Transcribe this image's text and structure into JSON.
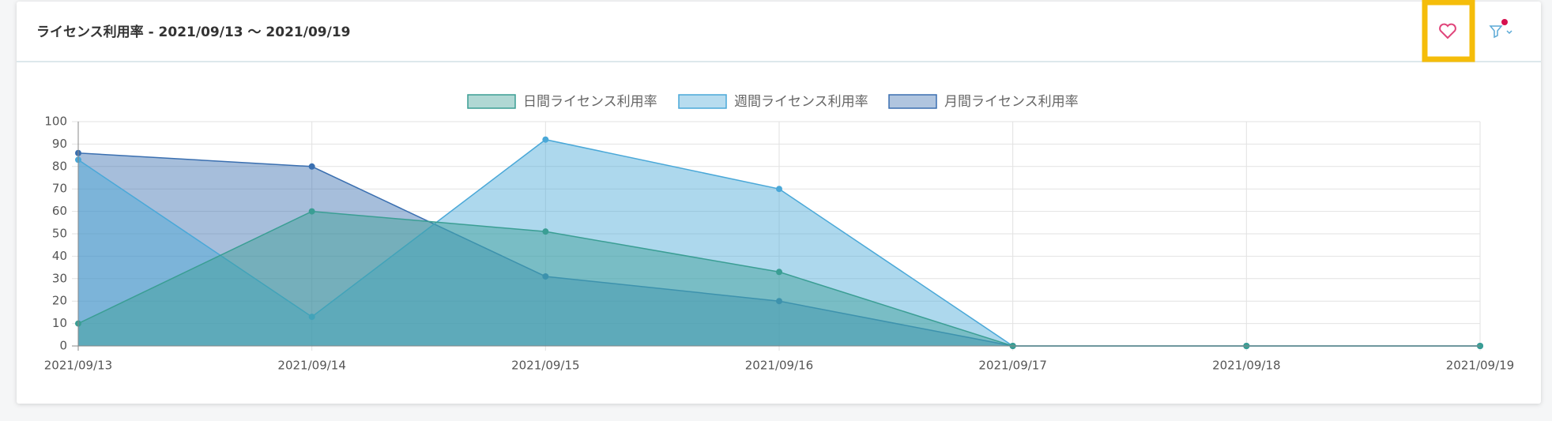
{
  "chart_data": {
    "type": "area",
    "title": "ライセンス利用率 - 2021/09/13 〜 2021/09/19",
    "categories": [
      "2021/09/13",
      "2021/09/14",
      "2021/09/15",
      "2021/09/16",
      "2021/09/17",
      "2021/09/18",
      "2021/09/19"
    ],
    "series": [
      {
        "name": "日間ライセンス利用率",
        "color": "#3a9e94",
        "values": [
          10,
          60,
          51,
          33,
          0,
          0,
          0
        ]
      },
      {
        "name": "週間ライセンス利用率",
        "color": "#4aa8d8",
        "values": [
          83,
          13,
          92,
          70,
          0,
          0,
          0
        ]
      },
      {
        "name": "月間ライセンス利用率",
        "color": "#3a6fb0",
        "values": [
          86,
          80,
          31,
          20,
          0,
          0,
          0
        ]
      }
    ],
    "ylim": [
      0,
      100
    ],
    "yticks": [
      0,
      10,
      20,
      30,
      40,
      50,
      60,
      70,
      80,
      90,
      100
    ],
    "grid": true,
    "legend": "top"
  }
}
